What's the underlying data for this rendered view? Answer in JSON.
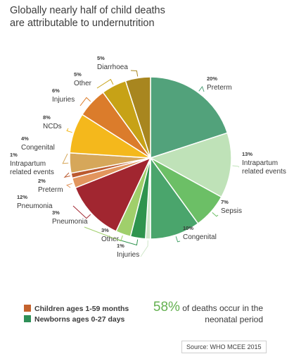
{
  "title": {
    "line1": "Globally nearly half of child deaths",
    "line2": "are attributable to undernutrition"
  },
  "chart_data": {
    "type": "pie",
    "slices": [
      {
        "pct_label": "20%",
        "label": "Preterm",
        "value": 20,
        "group": "newborn",
        "color": "#52a27b"
      },
      {
        "pct_label": "13%",
        "label": "Intrapartum related events",
        "value": 13,
        "group": "newborn",
        "color": "#bfe2b8"
      },
      {
        "pct_label": "7%",
        "label": "Sepsis",
        "value": 7,
        "group": "newborn",
        "color": "#6cbf66"
      },
      {
        "pct_label": "10%",
        "label": "Congenital",
        "value": 10,
        "group": "newborn",
        "color": "#4aa56c"
      },
      {
        "pct_label": "1%",
        "label": "Injuries",
        "value": 1,
        "group": "newborn",
        "color": "#cfe7c9"
      },
      {
        "pct_label": "3%",
        "label": "Other",
        "value": 3,
        "group": "newborn",
        "color": "#2f944e"
      },
      {
        "pct_label": "3%",
        "label": "Pneumonia",
        "value": 3,
        "group": "newborn",
        "color": "#a0cf6b"
      },
      {
        "pct_label": "12%",
        "label": "Pneumonia",
        "value": 12,
        "group": "child",
        "color": "#a12630"
      },
      {
        "pct_label": "2%",
        "label": "Preterm",
        "value": 2,
        "group": "child",
        "color": "#e2955d"
      },
      {
        "pct_label": "1%",
        "label": "Intrapartum related events",
        "value": 1,
        "group": "child",
        "color": "#bb5a2f"
      },
      {
        "pct_label": "4%",
        "label": "Congenital",
        "value": 4,
        "group": "child",
        "color": "#d6a75a"
      },
      {
        "pct_label": "8%",
        "label": "NCDs",
        "value": 8,
        "group": "child",
        "color": "#f4b81c"
      },
      {
        "pct_label": "6%",
        "label": "Injuries",
        "value": 6,
        "group": "child",
        "color": "#db7c2b"
      },
      {
        "pct_label": "5%",
        "label": "Other",
        "value": 5,
        "group": "child",
        "color": "#c7a216"
      },
      {
        "pct_label": "5%",
        "label": "Diarrhoea",
        "value": 5,
        "group": "child",
        "color": "#a8861f"
      }
    ]
  },
  "legend": {
    "children": {
      "label": "Children ages 1-59 months",
      "color": "#c4622d"
    },
    "newborns": {
      "label": "Newborns ages 0-27 days",
      "color": "#2e8f57"
    }
  },
  "stat": {
    "value": "58%",
    "text": "of deaths occur in the neonatal period"
  },
  "source": "Source: WHO MCEE 2015"
}
